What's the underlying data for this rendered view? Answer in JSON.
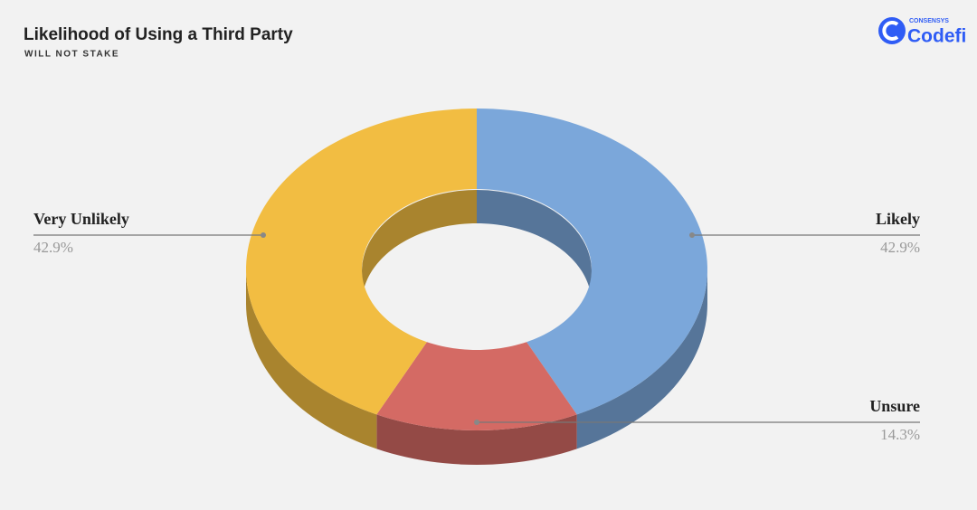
{
  "logo": {
    "small": "CONSENSYS",
    "name": "Codefi"
  },
  "chart_data": {
    "type": "pie",
    "donut": true,
    "title": "Likelihood of Using a Third Party",
    "subtitle": "WILL NOT STAKE",
    "categories": [
      "Likely",
      "Unsure",
      "Very Unlikely"
    ],
    "values": [
      42.9,
      14.3,
      42.9
    ],
    "value_labels": [
      "42.9%",
      "14.3%",
      "42.9%"
    ],
    "colors": [
      "#7ba7da",
      "#d46a64",
      "#f2bd42"
    ]
  }
}
